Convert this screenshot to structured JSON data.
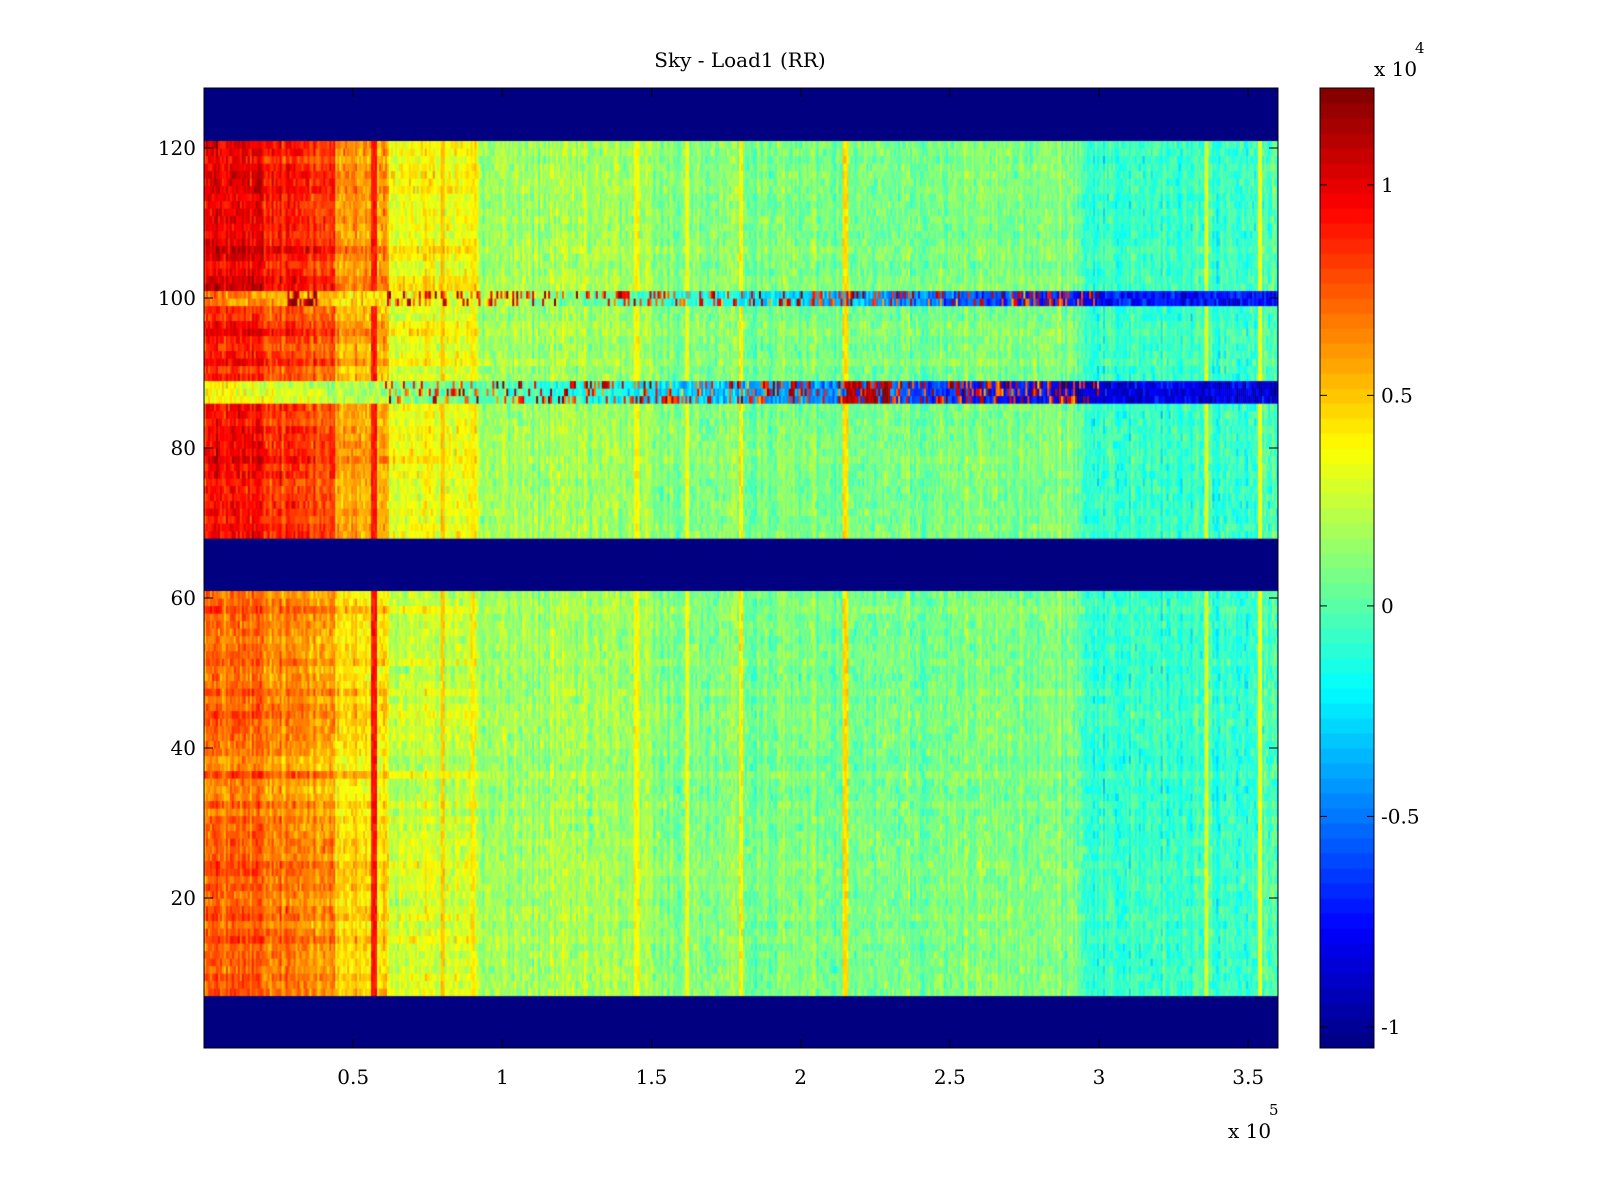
{
  "chart_data": {
    "type": "heatmap",
    "title": "Sky - Load1 (RR)",
    "xlabel": "",
    "ylabel": "",
    "x_multiplier": {
      "base": "x 10",
      "exponent": "5"
    },
    "x_range": [
      0,
      360000
    ],
    "y_range": [
      0,
      128
    ],
    "x_ticks": [
      {
        "value": 50000,
        "label": "0.5"
      },
      {
        "value": 100000,
        "label": "1"
      },
      {
        "value": 150000,
        "label": "1.5"
      },
      {
        "value": 200000,
        "label": "2"
      },
      {
        "value": 250000,
        "label": "2.5"
      },
      {
        "value": 300000,
        "label": "3"
      },
      {
        "value": 350000,
        "label": "3.5"
      }
    ],
    "y_ticks": [
      {
        "value": 20,
        "label": "20"
      },
      {
        "value": 40,
        "label": "40"
      },
      {
        "value": 60,
        "label": "60"
      },
      {
        "value": 80,
        "label": "80"
      },
      {
        "value": 100,
        "label": "100"
      },
      {
        "value": 120,
        "label": "120"
      }
    ],
    "colormap": "jet",
    "color_range": [
      -10500,
      12300
    ],
    "colorbar": {
      "placement": "right",
      "multiplier": {
        "base": "x 10",
        "exponent": "4"
      },
      "ticks": [
        {
          "value": -10000,
          "label": "-1"
        },
        {
          "value": -5000,
          "label": "-0.5"
        },
        {
          "value": 0,
          "label": "0"
        },
        {
          "value": 5000,
          "label": "0.5"
        },
        {
          "value": 10000,
          "label": "1"
        }
      ]
    },
    "empty_row_bands": [
      [
        0,
        7
      ],
      [
        61,
        68
      ],
      [
        121,
        128
      ]
    ],
    "x_regions": [
      {
        "x": [
          0,
          20000
        ],
        "value": 8800
      },
      {
        "x": [
          20000,
          44000
        ],
        "value": 8000
      },
      {
        "x": [
          44000,
          62000
        ],
        "value": 5500
      },
      {
        "x": [
          62000,
          92000
        ],
        "value": 3300
      },
      {
        "x": [
          92000,
          150000
        ],
        "value": 1600
      },
      {
        "x": [
          150000,
          295000
        ],
        "value": 900
      },
      {
        "x": [
          295000,
          360000
        ],
        "value": -700
      }
    ],
    "row_groups": [
      {
        "rows": [
          7,
          61
        ],
        "scale": 0.82
      },
      {
        "rows": [
          68,
          86
        ],
        "scale": 1.05
      },
      {
        "rows": [
          89,
          99
        ],
        "scale": 1.0
      },
      {
        "rows": [
          101,
          121
        ],
        "scale": 1.1
      }
    ],
    "anomaly_rows": [
      {
        "rows": [
          86,
          89
        ],
        "left_value": 4000,
        "right_value": -8500,
        "peak_x": [
          215000,
          230000
        ],
        "peak_value": 12000
      },
      {
        "rows": [
          99,
          101
        ],
        "left_value": 7000,
        "right_value": -7500,
        "peak_x": [
          28000,
          38000
        ],
        "peak_value": 12000
      }
    ],
    "bright_columns": [
      {
        "x": 57000,
        "value": 9000
      },
      {
        "x": 80000,
        "value": 5000
      },
      {
        "x": 90000,
        "value": 4200
      },
      {
        "x": 145000,
        "value": 3800
      },
      {
        "x": 162000,
        "value": 3600
      },
      {
        "x": 180000,
        "value": 4000
      },
      {
        "x": 215000,
        "value": 4500
      },
      {
        "x": 336000,
        "value": 3000
      },
      {
        "x": 354000,
        "value": 3500
      }
    ]
  }
}
